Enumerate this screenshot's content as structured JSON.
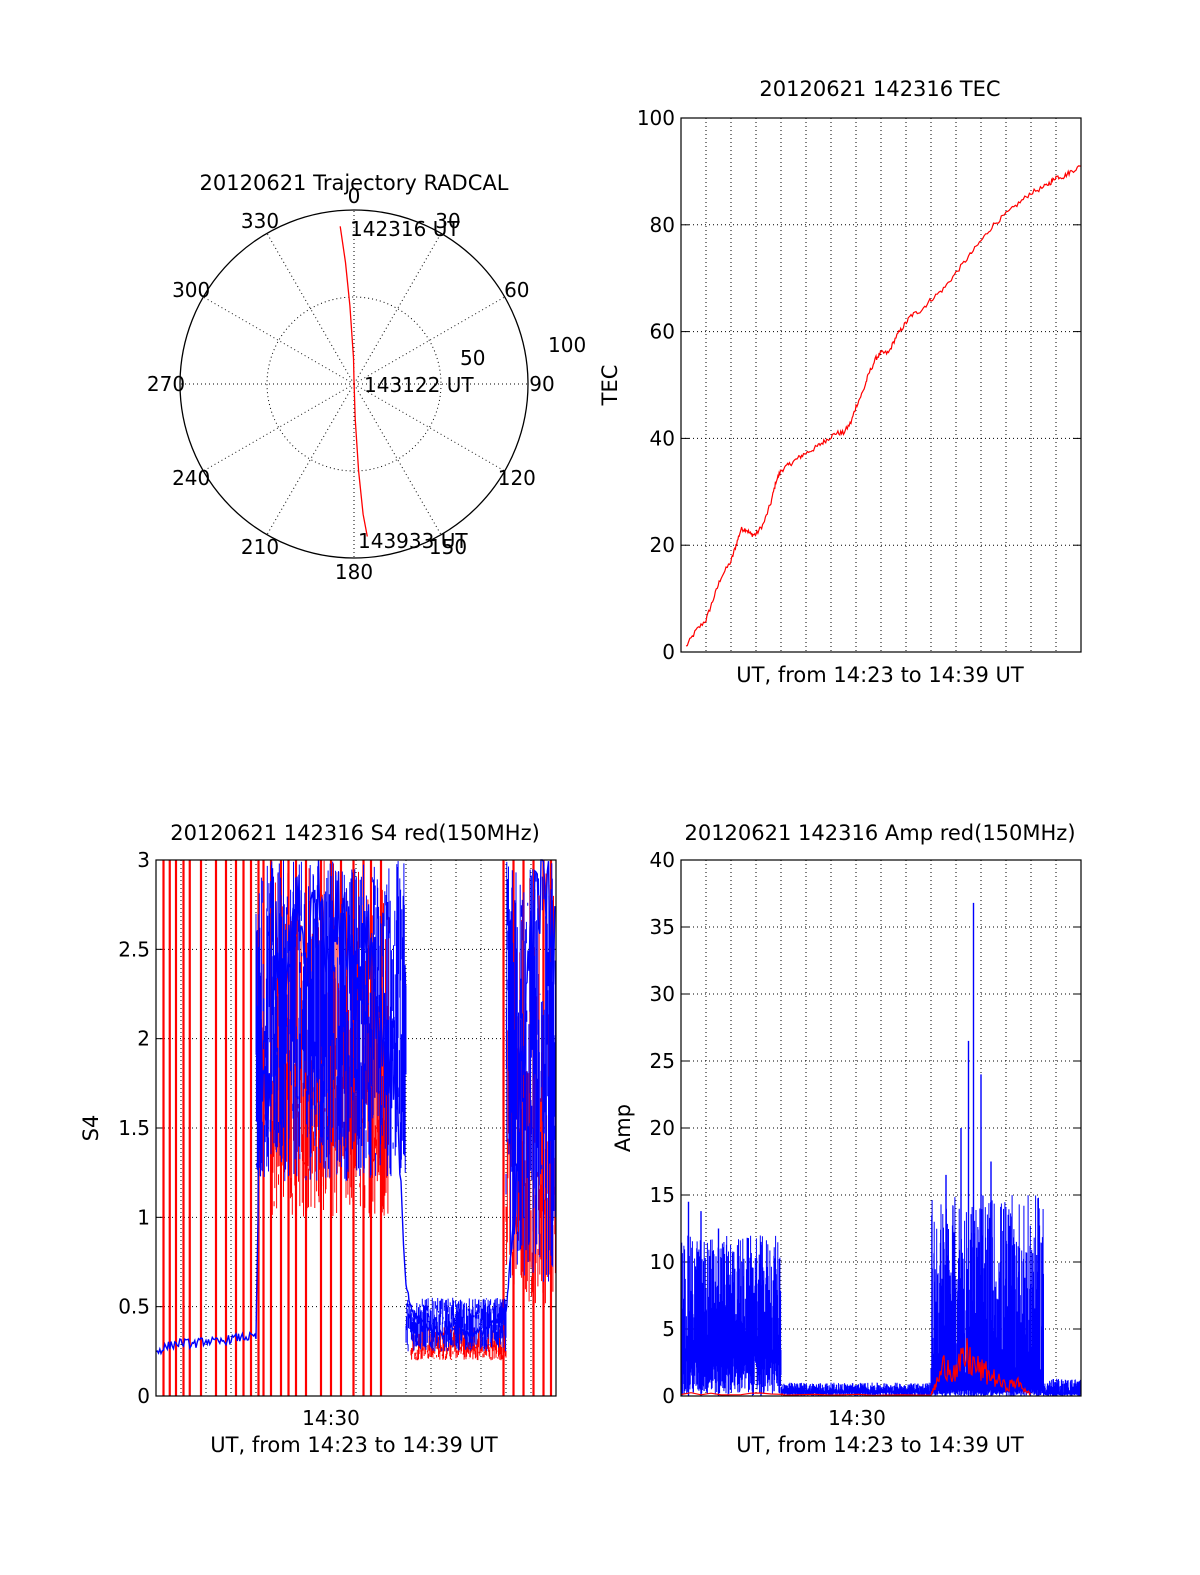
{
  "colors": {
    "red": "#ff0000",
    "blue": "#0000ff",
    "axes": "#000000",
    "background": "#ffffff"
  },
  "chart_data": [
    {
      "type": "polar",
      "title": "20120621 Trajectory RADCAL",
      "angle_labels": [
        "0",
        "30",
        "60",
        "90",
        "120",
        "150",
        "180",
        "210",
        "240",
        "270",
        "300",
        "330"
      ],
      "radius_labels": [
        "50",
        "100"
      ],
      "rmax": 100,
      "series": [
        {
          "color": "#ff0000",
          "points": [
            {
              "az": 355,
              "r": 91
            },
            {
              "az": 356,
              "r": 70
            },
            {
              "az": 357,
              "r": 45
            },
            {
              "az": 359,
              "r": 15
            },
            {
              "az": 0,
              "r": 2
            },
            {
              "az": 178,
              "r": 20
            },
            {
              "az": 177,
              "r": 50
            },
            {
              "az": 176,
              "r": 75
            },
            {
              "az": 175,
              "r": 88
            }
          ]
        }
      ],
      "annotations": [
        {
          "text": "142316 UT",
          "az": 15,
          "r": 90
        },
        {
          "text": "143122 UT",
          "az": 90,
          "r": 8
        },
        {
          "text": "143933 UT",
          "az": 162,
          "r": 85
        }
      ]
    },
    {
      "type": "line",
      "title": "20120621 142316 TEC",
      "xlabel": "UT, from 14:23 to 14:39 UT",
      "ylabel": "TEC",
      "xlim": [
        0,
        16
      ],
      "ylim": [
        0,
        100
      ],
      "yticks": [
        "0",
        "20",
        "40",
        "60",
        "80",
        "100"
      ],
      "x_gridlines": 16,
      "series": [
        {
          "color": "#ff0000",
          "x": [
            0.2,
            0.6,
            1.0,
            1.3,
            1.6,
            2.0,
            2.2,
            2.4,
            2.6,
            2.8,
            3.0,
            3.3,
            3.6,
            3.8,
            4.0,
            4.3,
            4.6,
            4.9,
            5.3,
            5.6,
            5.9,
            6.2,
            6.5,
            6.8,
            7.0,
            7.3,
            7.5,
            7.8,
            8.0,
            8.3,
            8.6,
            8.9,
            9.2,
            9.6,
            10.0,
            10.5,
            11.0,
            11.5,
            12.0,
            12.5,
            13.0,
            13.5,
            14.0,
            14.5,
            14.8,
            15.0,
            15.3,
            15.6,
            16.0
          ],
          "y": [
            1,
            4,
            6,
            10,
            14,
            17,
            20,
            23,
            23,
            22,
            22,
            24,
            28,
            32,
            34,
            35,
            36,
            37,
            38,
            39,
            40,
            41,
            41,
            43,
            46,
            49,
            52,
            55,
            56,
            56,
            59,
            61,
            63,
            64,
            66,
            68,
            71,
            74,
            77,
            80,
            82,
            84,
            86,
            87,
            88,
            89,
            89,
            90,
            91
          ]
        }
      ]
    },
    {
      "type": "line",
      "title": "20120621 142316 S4 red(150MHz)",
      "xlabel": "UT, from 14:23 to 14:39 UT",
      "ylabel": "S4",
      "xtick_label": "14:30",
      "xlim": [
        0,
        16
      ],
      "ylim": [
        0,
        3
      ],
      "yticks": [
        "0",
        "0.5",
        "1",
        "1.5",
        "2",
        "2.5",
        "3"
      ],
      "x_gridlines": 16,
      "series": [
        {
          "name_hidden": true,
          "color": "#ff0000",
          "spikes_x": [
            0.3,
            0.55,
            0.8,
            1.1,
            1.35,
            1.8,
            2.4,
            2.8,
            3.2,
            3.5,
            3.8,
            4.1,
            4.3,
            4.6,
            5.0,
            5.3,
            5.6,
            6.0,
            6.6,
            7.0,
            7.4,
            7.9,
            8.3,
            8.6,
            9.0,
            13.9,
            14.3,
            14.7,
            15.1,
            15.5,
            15.8
          ],
          "bands": [
            {
              "x0": 4.6,
              "x1": 9.3,
              "ylo": 1.0,
              "yhi": 3.0
            },
            {
              "x0": 10.2,
              "x1": 14.0,
              "ylo": 0.2,
              "yhi": 0.4
            },
            {
              "x0": 14.0,
              "x1": 16.0,
              "ylo": 0.5,
              "yhi": 3.0
            }
          ]
        },
        {
          "color": "#0000ff",
          "x": [
            0,
            0.5,
            1,
            1.5,
            2,
            2.5,
            3,
            3.5,
            4.0,
            4.2,
            4.5,
            4.8,
            5.2,
            5.6,
            6.0,
            6.5,
            7.0,
            7.5,
            8.0,
            8.5,
            9.0,
            9.5,
            10.0,
            10.3,
            10.6,
            11.0,
            11.5,
            12.0,
            12.5,
            13.0,
            13.5,
            14.0,
            14.3,
            14.6,
            15.0,
            15.5,
            16.0
          ],
          "y": [
            0.25,
            0.28,
            0.3,
            0.29,
            0.31,
            0.3,
            0.32,
            0.33,
            0.33,
            2.0,
            1.5,
            2.6,
            2.2,
            2.8,
            2.4,
            2.9,
            2.5,
            2.8,
            2.3,
            2.7,
            2.0,
            1.9,
            0.6,
            0.45,
            0.42,
            0.38,
            0.35,
            0.4,
            0.34,
            0.36,
            0.4,
            0.45,
            1.0,
            1.8,
            2.6,
            2.9,
            2.5
          ],
          "envelope": [
            {
              "x0": 4.0,
              "x1": 10.0,
              "ylo": 1.2,
              "yhi": 3.0
            },
            {
              "x0": 10.0,
              "x1": 14.0,
              "ylo": 0.25,
              "yhi": 0.55
            },
            {
              "x0": 14.0,
              "x1": 16.0,
              "ylo": 0.6,
              "yhi": 3.0
            }
          ]
        }
      ]
    },
    {
      "type": "line",
      "title": "20120621 142316 Amp red(150MHz)",
      "xlabel": "UT, from 14:23 to 14:39 UT",
      "ylabel": "Amp",
      "xtick_label": "14:30",
      "xlim": [
        0,
        16
      ],
      "ylim": [
        0,
        40
      ],
      "yticks": [
        "0",
        "5",
        "10",
        "15",
        "20",
        "25",
        "30",
        "35",
        "40"
      ],
      "x_gridlines": 16,
      "series": [
        {
          "color": "#0000ff",
          "bands": [
            {
              "x0": 0.0,
              "x1": 4.0,
              "ylo": 3.0,
              "yhi": 12.0
            },
            {
              "x0": 4.0,
              "x1": 10.0,
              "ylo": 0.3,
              "yhi": 1.0
            },
            {
              "x0": 10.0,
              "x1": 14.5,
              "ylo": 0.5,
              "yhi": 15.0
            },
            {
              "x0": 14.5,
              "x1": 16.0,
              "ylo": 0.2,
              "yhi": 1.3
            }
          ],
          "peaks": [
            {
              "x": 0.3,
              "y": 14.5
            },
            {
              "x": 0.8,
              "y": 13.8
            },
            {
              "x": 1.5,
              "y": 12.5
            },
            {
              "x": 3.2,
              "y": 11.5
            },
            {
              "x": 10.6,
              "y": 16.5
            },
            {
              "x": 11.2,
              "y": 20.0
            },
            {
              "x": 11.5,
              "y": 26.5
            },
            {
              "x": 11.7,
              "y": 36.8
            },
            {
              "x": 12.0,
              "y": 24.0
            },
            {
              "x": 12.4,
              "y": 17.5
            },
            {
              "x": 13.3,
              "y": 8.0
            },
            {
              "x": 13.6,
              "y": 5.5
            }
          ]
        },
        {
          "color": "#ff0000",
          "x": [
            0,
            4,
            4.2,
            10,
            10.2,
            10.6,
            11.0,
            11.4,
            11.8,
            12.2,
            12.6,
            13.0,
            13.4,
            13.8,
            14.0
          ],
          "y": [
            0.2,
            0.2,
            0.1,
            0.1,
            1.0,
            3.0,
            2.0,
            3.5,
            2.5,
            2.0,
            1.5,
            0.8,
            1.2,
            0.5,
            0.1
          ]
        }
      ]
    }
  ]
}
